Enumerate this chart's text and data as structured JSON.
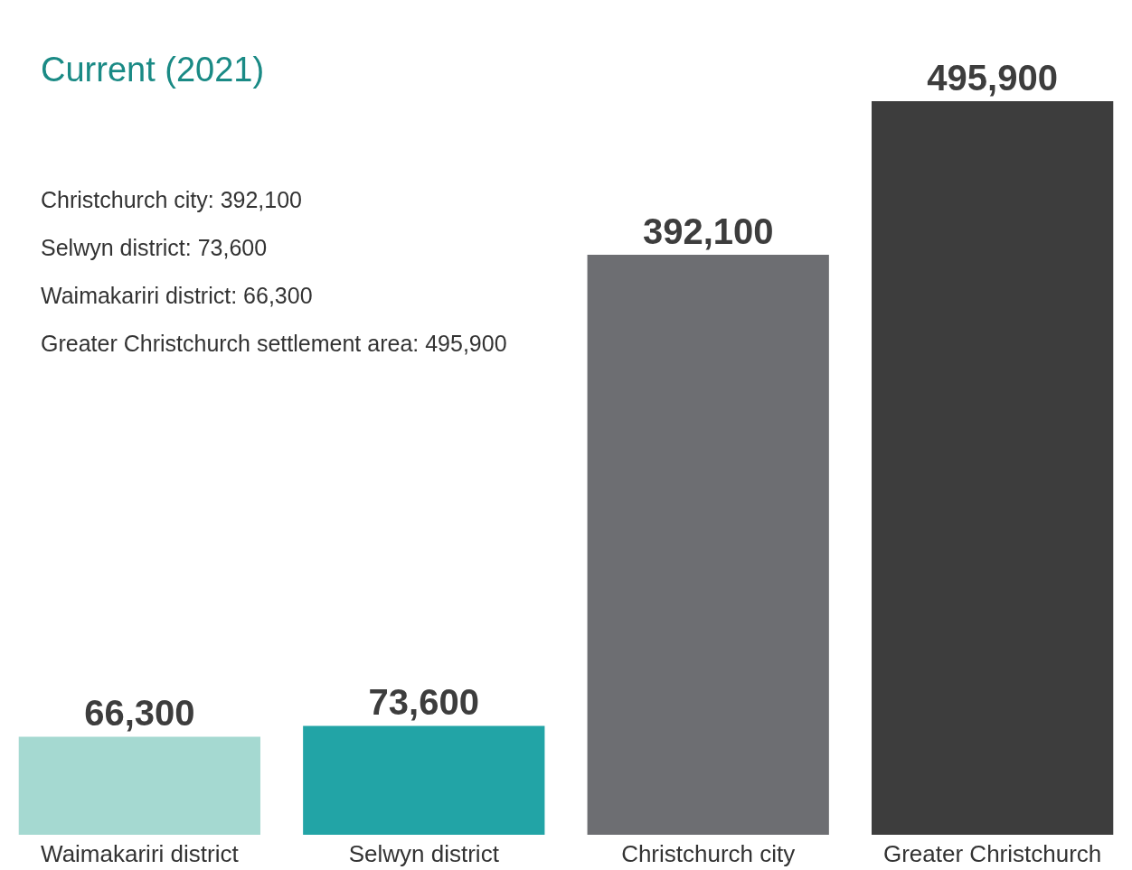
{
  "chart_data": {
    "type": "bar",
    "title": "Current (2021)",
    "categories": [
      "Waimakariri district",
      "Selwyn district",
      "Christchurch city",
      "Greater Christchurch"
    ],
    "values": [
      66300,
      73600,
      392100,
      495900
    ],
    "colors": [
      "#a5d9d1",
      "#22a4a6",
      "#6d6e72",
      "#3d3d3d"
    ],
    "value_labels": [
      "66,300",
      "73,600",
      "392,100",
      "495,900"
    ],
    "annotations": [
      "Christchurch city: 392,100",
      "Selwyn district: 73,600",
      "Waimakariri district: 66,300",
      "Greater Christchurch settlement area: 495,900"
    ]
  }
}
